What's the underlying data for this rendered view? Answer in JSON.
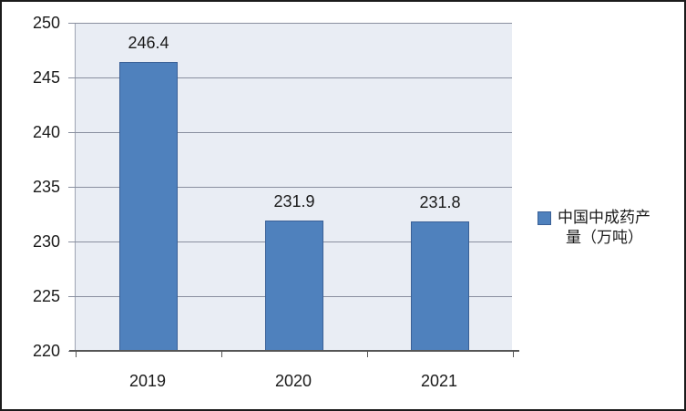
{
  "chart_data": {
    "type": "bar",
    "title": "",
    "xlabel": "",
    "ylabel": "",
    "categories": [
      "2019",
      "2020",
      "2021"
    ],
    "values": [
      246.4,
      231.9,
      231.8
    ],
    "data_labels": [
      "246.4",
      "231.9",
      "231.8"
    ],
    "series_name": "中国中成药产量（万吨）",
    "ylim": [
      220,
      250
    ],
    "yticks": [
      250,
      245,
      240,
      235,
      230,
      225,
      220
    ],
    "grid": true,
    "legend_position": "right"
  },
  "legend": {
    "marker": "blue-square",
    "lines": [
      "中国中成药产",
      "量（万吨）"
    ]
  },
  "colors": {
    "bar_fill": "#4f81bd",
    "bar_border": "#3a6096",
    "plot_bg": "#e9edf4",
    "plot_edge": "#9ea4b2",
    "gridline": "#898f9f",
    "axis_line": "#555555",
    "text": "#1a1a1a",
    "chart_border": "#1c1c1c",
    "chart_bg": "#ffffff"
  }
}
